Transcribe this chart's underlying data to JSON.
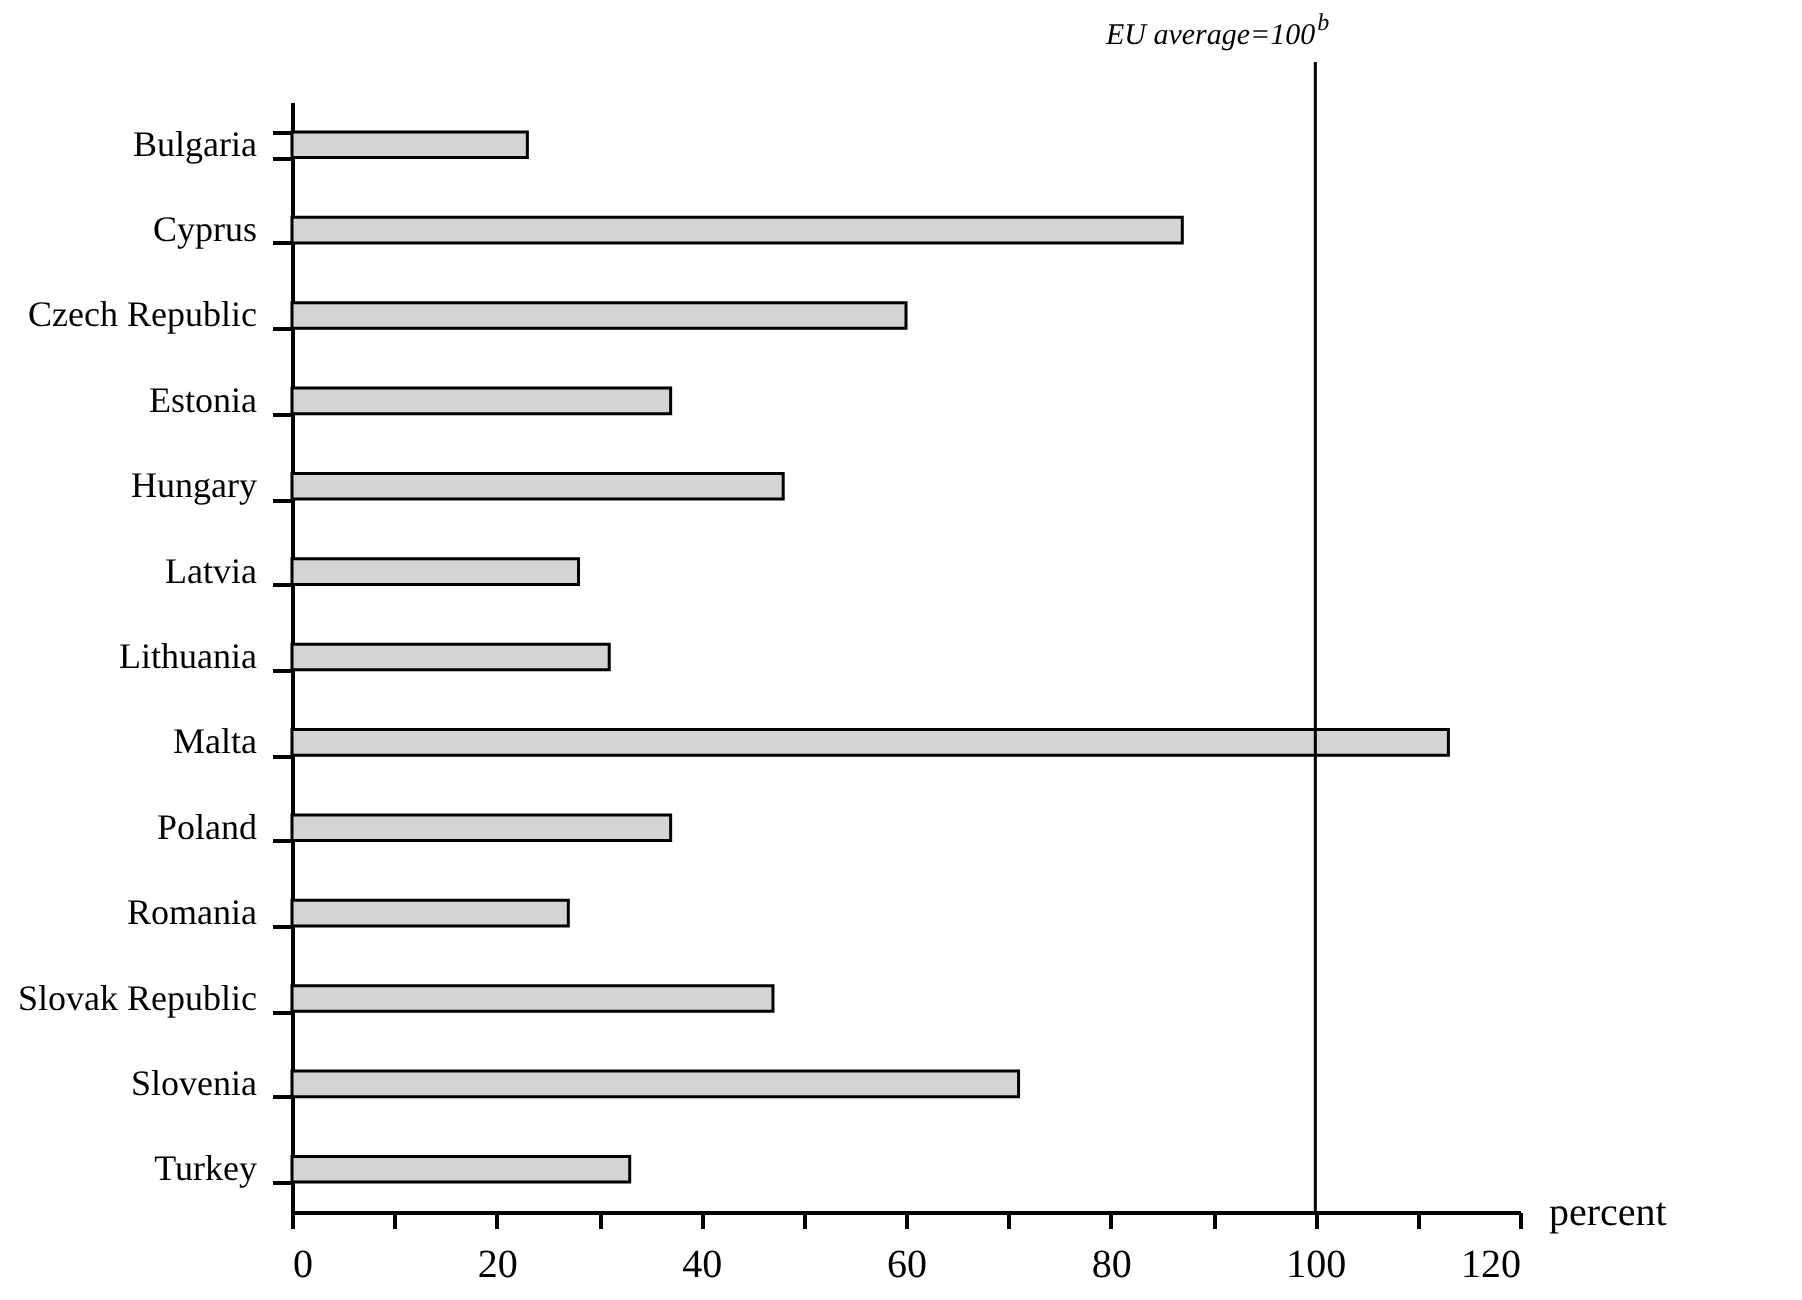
{
  "chart_data": {
    "type": "bar",
    "orientation": "horizontal",
    "categories": [
      "Bulgaria",
      "Cyprus",
      "Czech Republic",
      "Estonia",
      "Hungary",
      "Latvia",
      "Lithuania",
      "Malta",
      "Poland",
      "Romania",
      "Slovak Republic",
      "Slovenia",
      "Turkey"
    ],
    "series": [
      {
        "color": "#d4d4d4",
        "values": [
          23,
          87,
          60,
          37,
          48,
          28,
          31,
          113,
          37,
          27,
          47,
          71,
          33
        ]
      }
    ],
    "xlabel": "percent",
    "xlim": [
      0,
      120
    ],
    "xticks": [
      0,
      {
        "value": 10,
        "label": null
      },
      20,
      {
        "value": 30,
        "label": null
      },
      40,
      {
        "value": 50,
        "label": null
      },
      60,
      {
        "value": 70,
        "label": null
      },
      80,
      {
        "value": 90,
        "label": null
      },
      100,
      {
        "value": 110,
        "label": null
      },
      120
    ],
    "ref_lines": [
      {
        "axis": "x",
        "value": 100,
        "label": "EU average=100$^{b}$"
      }
    ],
    "grid": false,
    "legend": false
  }
}
